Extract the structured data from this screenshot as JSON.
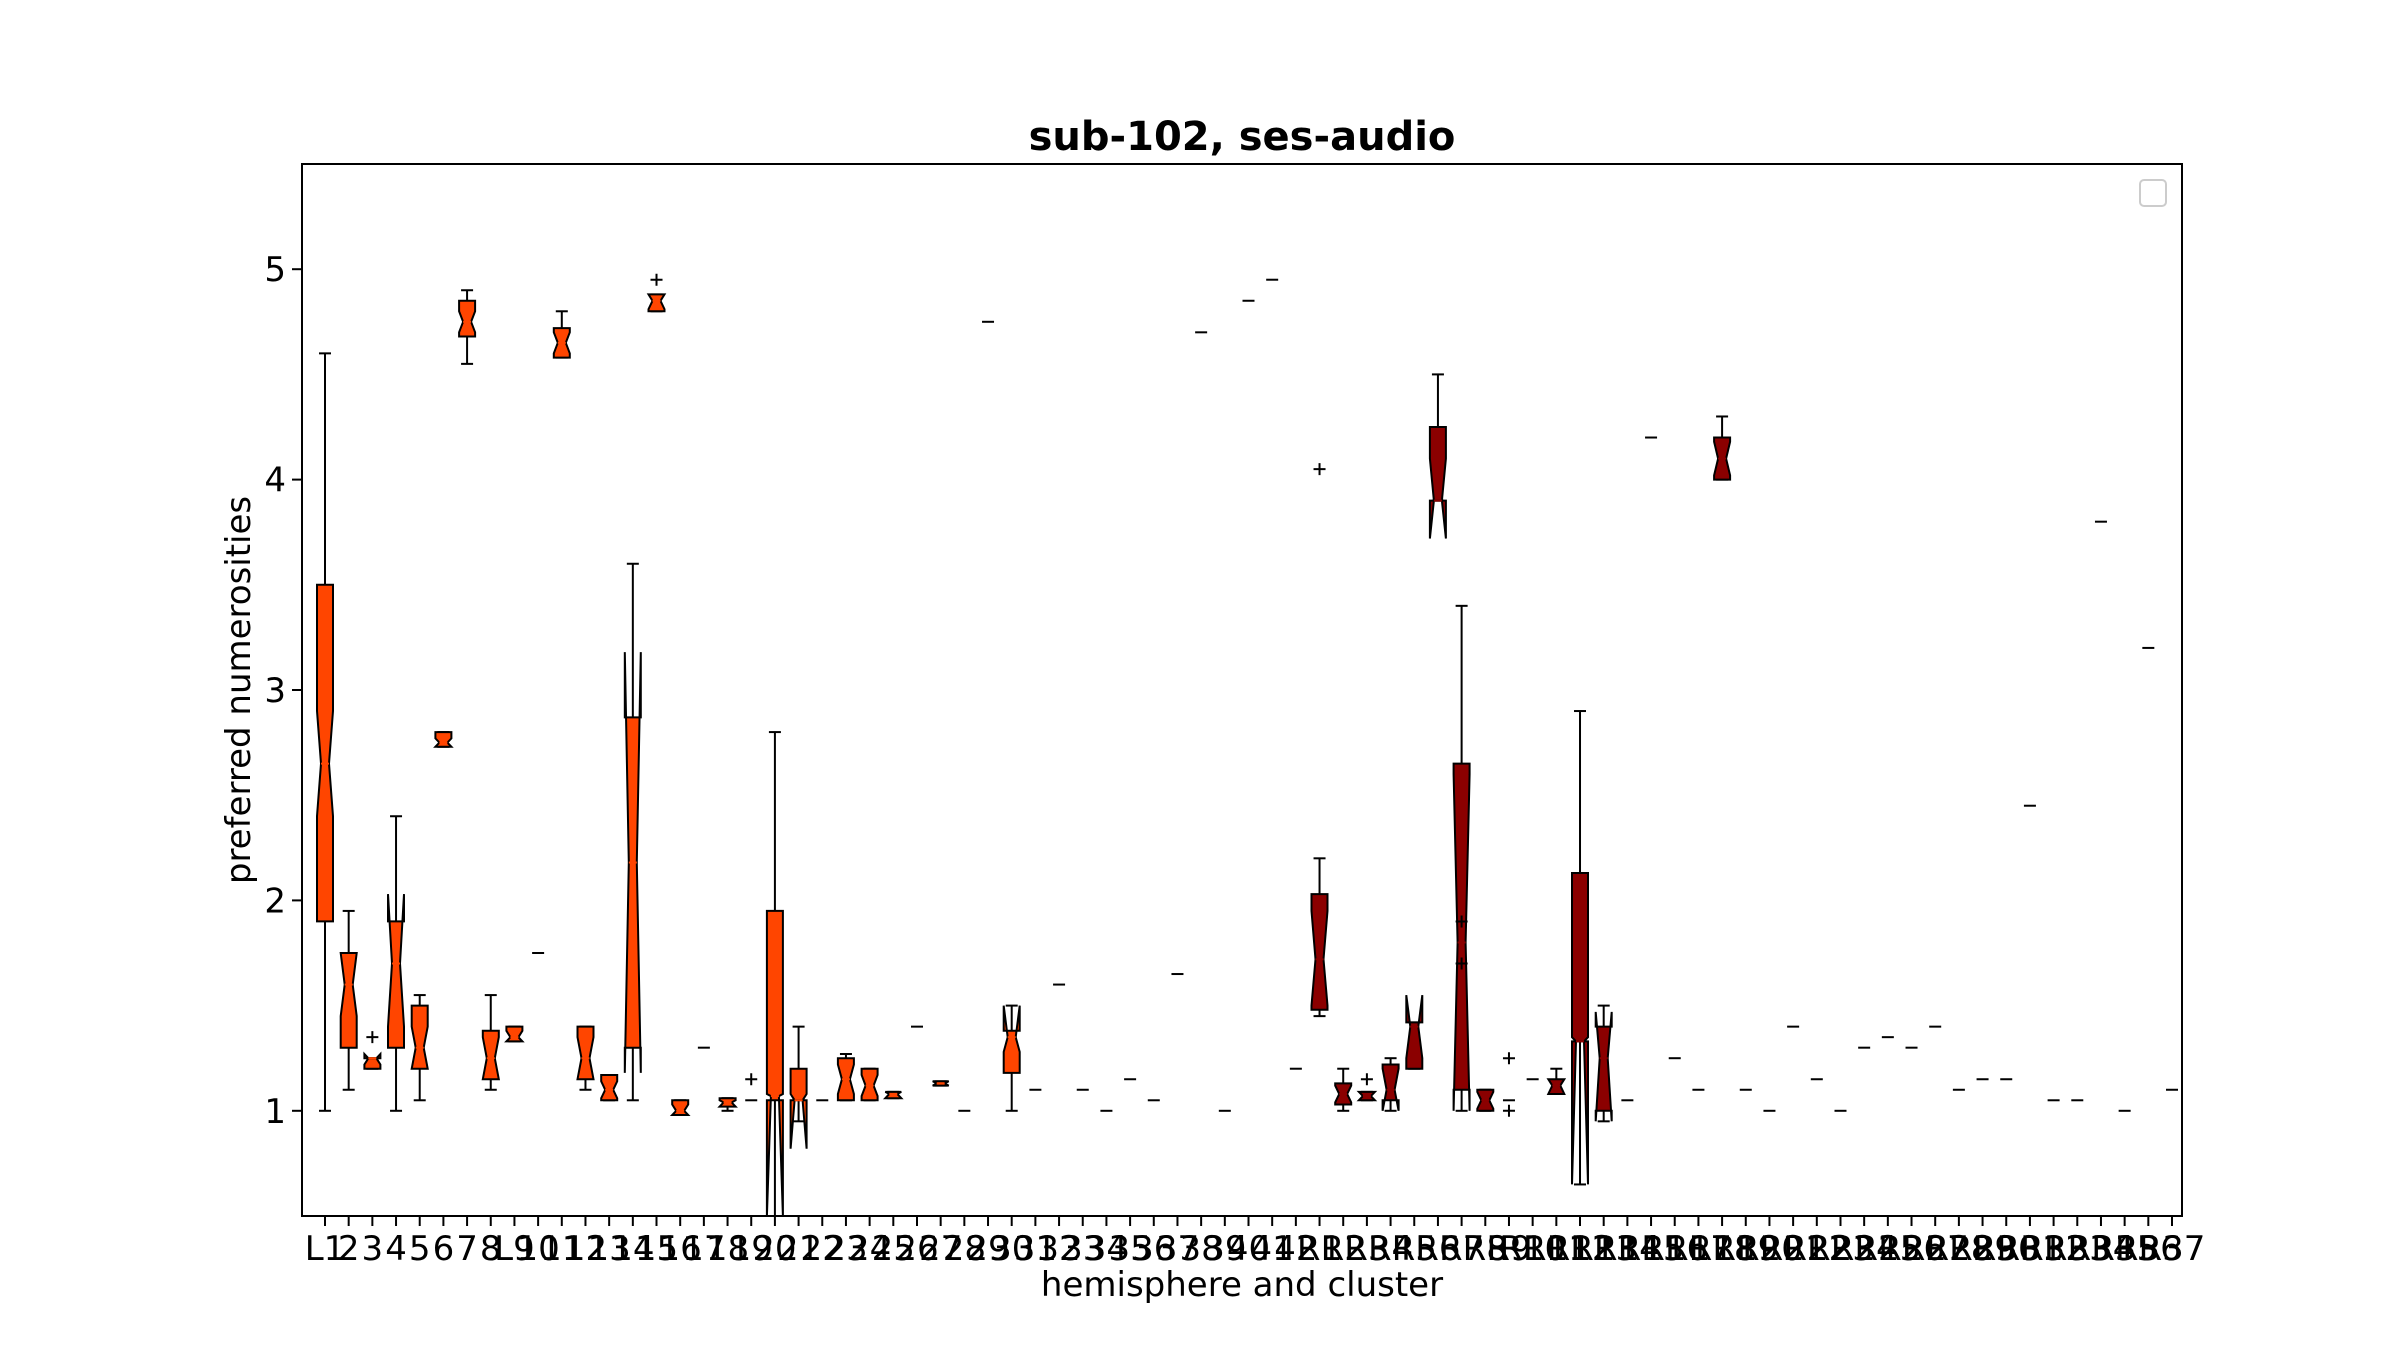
{
  "chart_data": {
    "type": "boxplot",
    "title": "sub-102, ses-audio",
    "xlabel": "hemisphere and cluster",
    "ylabel": "preferred numerosities",
    "ylim": [
      0.5,
      5.5
    ],
    "yticks": [
      1,
      2,
      3,
      4,
      5
    ],
    "grid": false,
    "legend": {
      "placement": "top-right",
      "entries": []
    },
    "colors": {
      "left": "#ff4500",
      "right": "#8b0000",
      "edge": "#000000"
    },
    "x_tick_labels": [
      "L1",
      "2",
      "3",
      "4",
      "5",
      "6",
      "7",
      "8",
      "L9",
      "10",
      "11",
      "12",
      "13",
      "14",
      "15",
      "16",
      "17",
      "18",
      "19",
      "20",
      "21",
      "22",
      "23",
      "24",
      "25",
      "26",
      "27",
      "28",
      "29",
      "30",
      "31",
      "32",
      "33",
      "34",
      "35",
      "36",
      "37",
      "38",
      "39",
      "40",
      "41",
      "42",
      "R1",
      "R2",
      "R3",
      "R4",
      "R5",
      "R6",
      "R7",
      "R8",
      "R9",
      "R10",
      "R11",
      "R12",
      "R13",
      "R14",
      "R15",
      "R16",
      "R17",
      "R18",
      "R19",
      "R20",
      "R21",
      "R22",
      "R23",
      "R24",
      "R25",
      "R26",
      "R27",
      "R28",
      "R29",
      "R30",
      "R31",
      "R32",
      "R33",
      "R34",
      "R35",
      "R36",
      "R37"
    ],
    "boxes": [
      {
        "label": "L1",
        "hemisphere": "L",
        "whislo": 1.0,
        "q1": 1.9,
        "med": 2.65,
        "q3": 3.5,
        "whishi": 4.6,
        "notch": [
          2.4,
          2.9
        ],
        "fliers": []
      },
      {
        "label": "2",
        "hemisphere": "L",
        "whislo": 1.1,
        "q1": 1.3,
        "med": 1.6,
        "q3": 1.75,
        "whishi": 1.95,
        "notch": [
          1.45,
          1.75
        ],
        "fliers": []
      },
      {
        "label": "3",
        "hemisphere": "L",
        "whislo": 1.2,
        "q1": 1.2,
        "med": 1.25,
        "q3": 1.25,
        "whishi": 1.25,
        "notch": [
          1.22,
          1.27
        ],
        "fliers": [
          1.35
        ]
      },
      {
        "label": "4",
        "hemisphere": "L",
        "whislo": 1.0,
        "q1": 1.3,
        "med": 1.7,
        "q3": 1.9,
        "whishi": 2.4,
        "notch": [
          1.4,
          2.03
        ],
        "fliers": []
      },
      {
        "label": "5",
        "hemisphere": "L",
        "whislo": 1.05,
        "q1": 1.2,
        "med": 1.3,
        "q3": 1.5,
        "whishi": 1.55,
        "notch": [
          1.2,
          1.4
        ],
        "fliers": []
      },
      {
        "label": "6",
        "hemisphere": "L",
        "whislo": 2.73,
        "q1": 2.73,
        "med": 2.75,
        "q3": 2.8,
        "whishi": 2.8,
        "notch": [
          2.73,
          2.77
        ],
        "fliers": []
      },
      {
        "label": "7",
        "hemisphere": "L",
        "whislo": 4.55,
        "q1": 4.68,
        "med": 4.75,
        "q3": 4.85,
        "whishi": 4.9,
        "notch": [
          4.7,
          4.8
        ],
        "fliers": []
      },
      {
        "label": "8",
        "hemisphere": "L",
        "whislo": 1.1,
        "q1": 1.15,
        "med": 1.25,
        "q3": 1.38,
        "whishi": 1.55,
        "notch": [
          1.15,
          1.35
        ],
        "fliers": []
      },
      {
        "label": "L9",
        "hemisphere": "L",
        "whislo": 1.33,
        "q1": 1.33,
        "med": 1.35,
        "q3": 1.4,
        "whishi": 1.4,
        "notch": [
          1.33,
          1.38
        ],
        "fliers": []
      },
      {
        "label": "10",
        "hemisphere": "L",
        "value": 1.75
      },
      {
        "label": "11",
        "hemisphere": "L",
        "whislo": 4.58,
        "q1": 4.58,
        "med": 4.65,
        "q3": 4.72,
        "whishi": 4.8,
        "notch": [
          4.6,
          4.7
        ],
        "fliers": []
      },
      {
        "label": "12",
        "hemisphere": "L",
        "whislo": 1.1,
        "q1": 1.15,
        "med": 1.25,
        "q3": 1.4,
        "whishi": 1.4,
        "notch": [
          1.15,
          1.35
        ],
        "fliers": []
      },
      {
        "label": "13",
        "hemisphere": "L",
        "whislo": 1.05,
        "q1": 1.05,
        "med": 1.1,
        "q3": 1.17,
        "whishi": 1.17,
        "notch": [
          1.06,
          1.14
        ],
        "fliers": []
      },
      {
        "label": "14",
        "hemisphere": "L",
        "whislo": 1.05,
        "q1": 1.3,
        "med": 2.18,
        "q3": 2.87,
        "whishi": 3.6,
        "notch": [
          1.18,
          3.18
        ],
        "fliers": []
      },
      {
        "label": "15",
        "hemisphere": "L",
        "whislo": 4.8,
        "q1": 4.8,
        "med": 4.85,
        "q3": 4.88,
        "whishi": 4.88,
        "notch": [
          4.81,
          4.88
        ],
        "fliers": [
          4.95
        ]
      },
      {
        "label": "16",
        "hemisphere": "L",
        "whislo": 0.98,
        "q1": 0.98,
        "med": 1.0,
        "q3": 1.05,
        "whishi": 1.05,
        "notch": [
          0.98,
          1.03
        ],
        "fliers": []
      },
      {
        "label": "17",
        "hemisphere": "L",
        "value": 1.3
      },
      {
        "label": "18",
        "hemisphere": "L",
        "whislo": 1.0,
        "q1": 1.02,
        "med": 1.04,
        "q3": 1.06,
        "whishi": 1.06,
        "notch": [
          1.02,
          1.05
        ],
        "fliers": []
      },
      {
        "label": "19",
        "hemisphere": "L",
        "value": 1.05,
        "fliers": [
          1.15
        ]
      },
      {
        "label": "20",
        "hemisphere": "L",
        "whislo": 0.5,
        "q1": 1.05,
        "med": 1.07,
        "q3": 1.95,
        "whishi": 2.8,
        "notch": [
          0.5,
          1.08
        ],
        "fliers": []
      },
      {
        "label": "21",
        "hemisphere": "L",
        "whislo": 0.95,
        "q1": 1.05,
        "med": 1.05,
        "q3": 1.2,
        "whishi": 1.4,
        "notch": [
          0.82,
          1.08
        ],
        "fliers": []
      },
      {
        "label": "22",
        "hemisphere": "L",
        "value": 1.05
      },
      {
        "label": "23",
        "hemisphere": "L",
        "whislo": 1.05,
        "q1": 1.05,
        "med": 1.15,
        "q3": 1.25,
        "whishi": 1.27,
        "notch": [
          1.08,
          1.22
        ],
        "fliers": []
      },
      {
        "label": "24",
        "hemisphere": "L",
        "whislo": 1.05,
        "q1": 1.05,
        "med": 1.12,
        "q3": 1.2,
        "whishi": 1.2,
        "notch": [
          1.07,
          1.17
        ],
        "fliers": []
      },
      {
        "label": "25",
        "hemisphere": "L",
        "whislo": 1.06,
        "q1": 1.06,
        "med": 1.08,
        "q3": 1.09,
        "whishi": 1.09,
        "notch": [
          1.06,
          1.09
        ],
        "fliers": []
      },
      {
        "label": "26",
        "hemisphere": "L",
        "value": 1.4
      },
      {
        "label": "27",
        "hemisphere": "L",
        "whislo": 1.12,
        "q1": 1.12,
        "med": 1.13,
        "q3": 1.14,
        "whishi": 1.14,
        "notch": [
          1.12,
          1.14
        ],
        "fliers": []
      },
      {
        "label": "28",
        "hemisphere": "L",
        "value": 1.0
      },
      {
        "label": "29",
        "hemisphere": "L",
        "value": 4.75
      },
      {
        "label": "30",
        "hemisphere": "L",
        "whislo": 1.0,
        "q1": 1.18,
        "med": 1.35,
        "q3": 1.38,
        "whishi": 1.5,
        "notch": [
          1.28,
          1.5
        ],
        "fliers": []
      },
      {
        "label": "31",
        "hemisphere": "L",
        "value": 1.1
      },
      {
        "label": "32",
        "hemisphere": "L",
        "value": 1.6
      },
      {
        "label": "33",
        "hemisphere": "L",
        "value": 1.1
      },
      {
        "label": "34",
        "hemisphere": "L",
        "value": 1.0
      },
      {
        "label": "35",
        "hemisphere": "L",
        "value": 1.15
      },
      {
        "label": "36",
        "hemisphere": "L",
        "value": 1.05
      },
      {
        "label": "37",
        "hemisphere": "L",
        "value": 1.65
      },
      {
        "label": "38",
        "hemisphere": "L",
        "value": 4.7
      },
      {
        "label": "39",
        "hemisphere": "L",
        "value": 1.0
      },
      {
        "label": "40",
        "hemisphere": "L",
        "value": 4.85
      },
      {
        "label": "41",
        "hemisphere": "L",
        "value": 4.95
      },
      {
        "label": "42",
        "hemisphere": "L",
        "value": 1.2
      },
      {
        "label": "R1",
        "hemisphere": "R",
        "whislo": 1.45,
        "q1": 1.48,
        "med": 1.72,
        "q3": 2.03,
        "whishi": 2.2,
        "notch": [
          1.5,
          1.95
        ],
        "fliers": [
          4.05
        ]
      },
      {
        "label": "R2",
        "hemisphere": "R",
        "whislo": 1.0,
        "q1": 1.03,
        "med": 1.08,
        "q3": 1.13,
        "whishi": 1.2,
        "notch": [
          1.04,
          1.12
        ],
        "fliers": []
      },
      {
        "label": "R3",
        "hemisphere": "R",
        "whislo": 1.05,
        "q1": 1.05,
        "med": 1.07,
        "q3": 1.09,
        "whishi": 1.09,
        "notch": [
          1.05,
          1.09
        ],
        "fliers": [
          1.15
        ]
      },
      {
        "label": "R4",
        "hemisphere": "R",
        "whislo": 1.0,
        "q1": 1.05,
        "med": 1.1,
        "q3": 1.22,
        "whishi": 1.25,
        "notch": [
          1.0,
          1.2
        ],
        "fliers": []
      },
      {
        "label": "R5",
        "hemisphere": "R",
        "whislo": 1.2,
        "q1": 1.2,
        "med": 1.4,
        "q3": 1.42,
        "whishi": 1.42,
        "notch": [
          1.25,
          1.55
        ],
        "fliers": []
      },
      {
        "label": "R6",
        "hemisphere": "R",
        "whislo": 3.9,
        "q1": 3.9,
        "med": 3.9,
        "q3": 4.25,
        "whishi": 4.5,
        "notch": [
          3.72,
          4.1
        ],
        "fliers": []
      },
      {
        "label": "R7",
        "hemisphere": "R",
        "whislo": 1.0,
        "q1": 1.1,
        "med": 1.8,
        "q3": 2.65,
        "whishi": 3.4,
        "notch": [
          1.0,
          2.6
        ],
        "fliers": [
          1.7,
          1.9
        ]
      },
      {
        "label": "R8",
        "hemisphere": "R",
        "whislo": 1.0,
        "q1": 1.0,
        "med": 1.05,
        "q3": 1.1,
        "whishi": 1.1,
        "notch": [
          1.01,
          1.09
        ],
        "fliers": []
      },
      {
        "label": "R9",
        "hemisphere": "R",
        "value": 1.05,
        "fliers": [
          1.0,
          1.25
        ]
      },
      {
        "label": "R10",
        "hemisphere": "R",
        "value": 1.15
      },
      {
        "label": "R11",
        "hemisphere": "R",
        "whislo": 1.08,
        "q1": 1.08,
        "med": 1.12,
        "q3": 1.15,
        "whishi": 1.2,
        "notch": [
          1.08,
          1.15
        ],
        "fliers": []
      },
      {
        "label": "R12",
        "hemisphere": "R",
        "whislo": 0.65,
        "q1": 1.33,
        "med": 1.33,
        "q3": 2.13,
        "whishi": 2.9,
        "notch": [
          0.65,
          1.35
        ],
        "fliers": []
      },
      {
        "label": "R13",
        "hemisphere": "R",
        "whislo": 0.95,
        "q1": 1.0,
        "med": 1.25,
        "q3": 1.4,
        "whishi": 1.5,
        "notch": [
          0.95,
          1.47
        ],
        "fliers": []
      },
      {
        "label": "R14",
        "hemisphere": "R",
        "value": 1.05
      },
      {
        "label": "R15",
        "hemisphere": "R",
        "value": 4.2
      },
      {
        "label": "R16",
        "hemisphere": "R",
        "value": 1.25
      },
      {
        "label": "R17",
        "hemisphere": "R",
        "value": 1.1
      },
      {
        "label": "R18",
        "hemisphere": "R",
        "whislo": 4.0,
        "q1": 4.0,
        "med": 4.1,
        "q3": 4.2,
        "whishi": 4.3,
        "notch": [
          4.02,
          4.18
        ],
        "fliers": []
      },
      {
        "label": "R19",
        "hemisphere": "R",
        "value": 1.1
      },
      {
        "label": "R20",
        "hemisphere": "R",
        "value": 1.0
      },
      {
        "label": "R21",
        "hemisphere": "R",
        "value": 1.4
      },
      {
        "label": "R22",
        "hemisphere": "R",
        "value": 1.15
      },
      {
        "label": "R23",
        "hemisphere": "R",
        "value": 1.0
      },
      {
        "label": "R24",
        "hemisphere": "R",
        "value": 1.3
      },
      {
        "label": "R25",
        "hemisphere": "R",
        "value": 1.35
      },
      {
        "label": "R26",
        "hemisphere": "R",
        "value": 1.3
      },
      {
        "label": "R27",
        "hemisphere": "R",
        "value": 1.4
      },
      {
        "label": "R28",
        "hemisphere": "R",
        "value": 1.1
      },
      {
        "label": "R29",
        "hemisphere": "R",
        "value": 1.15
      },
      {
        "label": "R30",
        "hemisphere": "R",
        "value": 1.15
      },
      {
        "label": "R31",
        "hemisphere": "R",
        "value": 2.45
      },
      {
        "label": "R32",
        "hemisphere": "R",
        "value": 1.05
      },
      {
        "label": "R33",
        "hemisphere": "R",
        "value": 1.05
      },
      {
        "label": "R34",
        "hemisphere": "R",
        "value": 3.8
      },
      {
        "label": "R35",
        "hemisphere": "R",
        "value": 1.0
      },
      {
        "label": "R36",
        "hemisphere": "R",
        "value": 3.2
      },
      {
        "label": "R37",
        "hemisphere": "R",
        "value": 1.1
      }
    ]
  }
}
